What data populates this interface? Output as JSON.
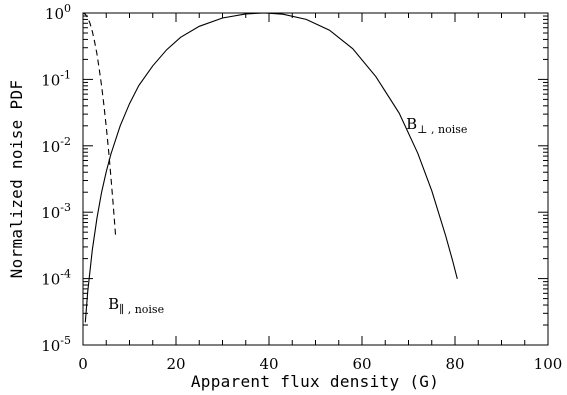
{
  "chart_data": {
    "type": "line",
    "xlabel": "Apparent flux density (G)",
    "ylabel": "Normalized noise PDF",
    "xlim": [
      0,
      100
    ],
    "ylim": [
      1e-05,
      1
    ],
    "yscale": "log",
    "grid": false,
    "legend": "none",
    "x_ticks": [
      0,
      20,
      40,
      60,
      80,
      100
    ],
    "x_tick_labels": [
      "0",
      "20",
      "40",
      "60",
      "80",
      "100"
    ],
    "y_ticks": [
      1e-05,
      0.0001,
      0.001,
      0.01,
      0.1,
      1
    ],
    "y_tick_labels": [
      {
        "base": "10",
        "exp": "-5"
      },
      {
        "base": "10",
        "exp": "-4"
      },
      {
        "base": "10",
        "exp": "-3"
      },
      {
        "base": "10",
        "exp": "-2"
      },
      {
        "base": "10",
        "exp": "-1"
      },
      {
        "base": "10",
        "exp": "0"
      }
    ],
    "series": [
      {
        "style": "solid",
        "color": "#000000",
        "sigma": 17.5,
        "peak_x": 39,
        "x": [
          0.5,
          1,
          2,
          3,
          4,
          5,
          6,
          8,
          10,
          12,
          15,
          18,
          21,
          25,
          30,
          35,
          39,
          43,
          48,
          53,
          58,
          63,
          68,
          72,
          75,
          78,
          79.5,
          80.5
        ],
        "y": [
          2.2e-05,
          6.3e-05,
          0.00027,
          0.00082,
          0.002,
          0.0041,
          0.0075,
          0.02,
          0.043,
          0.081,
          0.16,
          0.28,
          0.43,
          0.63,
          0.84,
          0.97,
          1.0,
          0.96,
          0.8,
          0.55,
          0.29,
          0.11,
          0.031,
          0.0077,
          0.0021,
          0.00044,
          0.000184,
          9.9e-05
        ]
      },
      {
        "style": "dashed",
        "color": "#000000",
        "sigma": 1.78,
        "x": [
          0,
          0.5,
          1,
          1.5,
          2,
          2.5,
          3,
          3.5,
          4,
          4.5,
          5,
          5.5,
          6,
          6.5,
          7
        ],
        "y": [
          1.0,
          0.96,
          0.85,
          0.7,
          0.53,
          0.37,
          0.24,
          0.14,
          0.08,
          0.041,
          0.019,
          0.0085,
          0.0034,
          0.0013,
          0.00044
        ]
      }
    ],
    "annotations": [
      {
        "id": "perp",
        "main": "B",
        "sub": "⊥ , noise",
        "x": 69.5,
        "y": 0.018
      },
      {
        "id": "par",
        "main": "B",
        "sub": "∥ , noise",
        "x": 5.4,
        "y": 3.5e-05
      }
    ]
  }
}
